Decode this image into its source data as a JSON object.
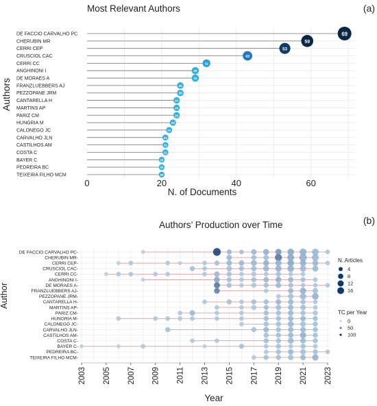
{
  "panel_labels": [
    "(a)",
    "(b)"
  ],
  "chart_data": [
    {
      "type": "lollipop",
      "title": "Most Relevant Authors",
      "xlabel": "N. of Documents",
      "ylabel": "Authors",
      "xlim": [
        0,
        72
      ],
      "xticks": [
        0,
        20,
        40,
        60
      ],
      "grid": true,
      "accent_colors": [
        "#0b2746",
        "#1f77c9",
        "#33aee3"
      ],
      "categories": [
        "DE FACCIO CARVALHO PC",
        "CHERUBIN MR",
        "CERRI CEP",
        "CRUSCIOL CAC",
        "CERRI CC",
        "ANGHINONI I",
        "DE MORAES A",
        "FRANZLUEBBERS AJ",
        "PEZZOPANE JRM",
        "CANTARELLA H",
        "MARTINS AP",
        "PARIZ CM",
        "HUNGRIA M",
        "CALONEGO JC",
        "CARVALHO JLN",
        "CASTILHOS AM",
        "COSTA C",
        "BAYER C",
        "PEDREIRA BC",
        "TEIXEIRA FILHO MCM"
      ],
      "values": [
        69,
        59,
        53,
        43,
        32,
        29,
        29,
        25,
        25,
        24,
        24,
        24,
        23,
        22,
        21,
        21,
        21,
        20,
        20,
        20
      ]
    },
    {
      "type": "scatter",
      "title": "Authors’ Production over Time",
      "xlabel": "Year",
      "ylabel": "Author",
      "xlim": [
        2003,
        2023
      ],
      "xticks": [
        2003,
        2005,
        2007,
        2009,
        2011,
        2013,
        2015,
        2017,
        2019,
        2021,
        2023
      ],
      "grid": true,
      "line_color": "#e8a6a6",
      "legend_position": "right",
      "legend": {
        "size_title": "N. Articles",
        "size_items": [
          4,
          8,
          12,
          16
        ],
        "color_title": "TC per Year",
        "color_items": [
          0,
          50,
          100
        ]
      },
      "authors": [
        "DE FACCIO CARVALHO PC",
        "CHERUBIN MR",
        "CERRI CEP",
        "CRUSCIOL CAC",
        "CERRI CC",
        "ANGHINONI I",
        "DE MORAES A",
        "FRANZLUEBBERS AJ",
        "PEZZOPANE JRM",
        "CANTARELLA H",
        "MARTINS AP",
        "PARIZ CM",
        "HUNGRIA M",
        "CALONEGO JC",
        "CARVALHO JLN",
        "CASTILHOS AM",
        "COSTA C",
        "BAYER C",
        "PEDREIRA BC",
        "TEIXEIRA FILHO MCM"
      ],
      "points": [
        [
          [
            2008,
            1,
            5
          ],
          [
            2014,
            12,
            95
          ],
          [
            2015,
            3,
            20
          ],
          [
            2016,
            2,
            15
          ],
          [
            2017,
            4,
            20
          ],
          [
            2018,
            5,
            25
          ],
          [
            2019,
            6,
            40
          ],
          [
            2020,
            7,
            30
          ],
          [
            2021,
            8,
            25
          ],
          [
            2022,
            7,
            20
          ],
          [
            2023,
            2,
            10
          ]
        ],
        [
          [
            2015,
            4,
            20
          ],
          [
            2017,
            3,
            15
          ],
          [
            2018,
            4,
            15
          ],
          [
            2019,
            9,
            60
          ],
          [
            2020,
            8,
            30
          ],
          [
            2021,
            10,
            25
          ],
          [
            2022,
            8,
            20
          ]
        ],
        [
          [
            2006,
            1,
            5
          ],
          [
            2007,
            2,
            10
          ],
          [
            2010,
            2,
            10
          ],
          [
            2011,
            1,
            5
          ],
          [
            2013,
            2,
            10
          ],
          [
            2014,
            3,
            15
          ],
          [
            2015,
            4,
            20
          ],
          [
            2016,
            4,
            20
          ],
          [
            2017,
            5,
            20
          ],
          [
            2018,
            5,
            25
          ],
          [
            2019,
            6,
            25
          ],
          [
            2020,
            7,
            30
          ],
          [
            2021,
            6,
            25
          ],
          [
            2022,
            5,
            20
          ],
          [
            2023,
            2,
            10
          ]
        ],
        [
          [
            2012,
            3,
            15
          ],
          [
            2013,
            2,
            10
          ],
          [
            2015,
            4,
            15
          ],
          [
            2016,
            3,
            15
          ],
          [
            2017,
            4,
            15
          ],
          [
            2018,
            5,
            20
          ],
          [
            2019,
            6,
            25
          ],
          [
            2020,
            7,
            25
          ],
          [
            2021,
            6,
            20
          ],
          [
            2022,
            5,
            20
          ]
        ],
        [
          [
            2005,
            1,
            5
          ],
          [
            2006,
            2,
            10
          ],
          [
            2007,
            2,
            10
          ],
          [
            2009,
            2,
            10
          ],
          [
            2010,
            2,
            10
          ],
          [
            2013,
            2,
            10
          ],
          [
            2014,
            4,
            20
          ],
          [
            2015,
            3,
            15
          ],
          [
            2016,
            2,
            10
          ],
          [
            2017,
            3,
            10
          ],
          [
            2018,
            2,
            10
          ],
          [
            2019,
            3,
            15
          ],
          [
            2020,
            2,
            10
          ],
          [
            2021,
            2,
            10
          ]
        ],
        [
          [
            2008,
            1,
            5
          ],
          [
            2014,
            5,
            30
          ],
          [
            2015,
            3,
            15
          ],
          [
            2016,
            2,
            10
          ],
          [
            2017,
            3,
            15
          ],
          [
            2018,
            4,
            20
          ],
          [
            2019,
            5,
            25
          ],
          [
            2020,
            4,
            20
          ],
          [
            2021,
            3,
            15
          ],
          [
            2022,
            2,
            10
          ]
        ],
        [
          [
            2014,
            6,
            60
          ],
          [
            2015,
            3,
            15
          ],
          [
            2016,
            2,
            10
          ],
          [
            2017,
            3,
            10
          ],
          [
            2018,
            3,
            15
          ],
          [
            2019,
            4,
            20
          ],
          [
            2020,
            3,
            15
          ],
          [
            2021,
            2,
            10
          ],
          [
            2022,
            2,
            10
          ],
          [
            2023,
            2,
            10
          ]
        ],
        [
          [
            2014,
            5,
            55
          ],
          [
            2018,
            2,
            10
          ],
          [
            2020,
            4,
            20
          ],
          [
            2021,
            6,
            25
          ],
          [
            2022,
            4,
            15
          ]
        ],
        [
          [
            2019,
            2,
            10
          ],
          [
            2020,
            4,
            15
          ],
          [
            2021,
            6,
            20
          ],
          [
            2022,
            7,
            25
          ]
        ],
        [
          [
            2013,
            2,
            10
          ],
          [
            2015,
            3,
            15
          ],
          [
            2016,
            2,
            10
          ],
          [
            2017,
            3,
            15
          ],
          [
            2018,
            3,
            15
          ],
          [
            2019,
            4,
            20
          ],
          [
            2020,
            4,
            20
          ],
          [
            2021,
            3,
            15
          ],
          [
            2022,
            2,
            10
          ]
        ],
        [
          [
            2014,
            2,
            10
          ],
          [
            2016,
            2,
            10
          ],
          [
            2017,
            3,
            10
          ],
          [
            2018,
            3,
            15
          ],
          [
            2019,
            4,
            15
          ],
          [
            2020,
            4,
            20
          ],
          [
            2021,
            4,
            15
          ],
          [
            2022,
            2,
            10
          ]
        ],
        [
          [
            2011,
            2,
            10
          ],
          [
            2012,
            4,
            20
          ],
          [
            2014,
            2,
            10
          ],
          [
            2016,
            2,
            10
          ],
          [
            2018,
            3,
            15
          ],
          [
            2019,
            3,
            15
          ],
          [
            2020,
            4,
            20
          ],
          [
            2021,
            3,
            15
          ],
          [
            2022,
            3,
            10
          ]
        ],
        [
          [
            2006,
            2,
            10
          ],
          [
            2009,
            2,
            10
          ],
          [
            2010,
            2,
            10
          ],
          [
            2011,
            2,
            10
          ],
          [
            2012,
            2,
            10
          ],
          [
            2014,
            2,
            10
          ],
          [
            2016,
            2,
            10
          ],
          [
            2018,
            3,
            15
          ],
          [
            2019,
            3,
            15
          ],
          [
            2020,
            4,
            20
          ],
          [
            2021,
            4,
            20
          ],
          [
            2022,
            3,
            15
          ]
        ],
        [
          [
            2016,
            2,
            10
          ],
          [
            2018,
            3,
            15
          ],
          [
            2019,
            3,
            15
          ],
          [
            2020,
            5,
            20
          ],
          [
            2021,
            4,
            15
          ],
          [
            2022,
            3,
            15
          ]
        ],
        [
          [
            2010,
            3,
            15
          ],
          [
            2017,
            3,
            15
          ],
          [
            2018,
            4,
            20
          ],
          [
            2019,
            3,
            15
          ],
          [
            2020,
            4,
            20
          ],
          [
            2021,
            4,
            20
          ],
          [
            2022,
            3,
            15
          ]
        ],
        [
          [
            2018,
            3,
            15
          ],
          [
            2019,
            3,
            15
          ],
          [
            2020,
            4,
            20
          ],
          [
            2021,
            6,
            25
          ],
          [
            2022,
            3,
            15
          ]
        ],
        [
          [
            2012,
            2,
            10
          ],
          [
            2014,
            2,
            10
          ],
          [
            2018,
            3,
            15
          ],
          [
            2019,
            3,
            15
          ],
          [
            2020,
            5,
            20
          ],
          [
            2021,
            4,
            20
          ],
          [
            2022,
            3,
            15
          ]
        ],
        [
          [
            2003,
            1,
            5
          ],
          [
            2006,
            1,
            5
          ],
          [
            2008,
            2,
            10
          ],
          [
            2013,
            1,
            5
          ],
          [
            2016,
            3,
            15
          ],
          [
            2018,
            2,
            10
          ],
          [
            2019,
            3,
            15
          ],
          [
            2020,
            2,
            10
          ],
          [
            2021,
            3,
            15
          ],
          [
            2022,
            2,
            10
          ]
        ],
        [
          [
            2018,
            2,
            10
          ],
          [
            2019,
            3,
            15
          ],
          [
            2020,
            4,
            20
          ],
          [
            2021,
            4,
            15
          ],
          [
            2022,
            3,
            15
          ],
          [
            2023,
            2,
            10
          ]
        ],
        [
          [
            2017,
            2,
            10
          ],
          [
            2018,
            3,
            15
          ],
          [
            2019,
            3,
            15
          ],
          [
            2020,
            4,
            15
          ],
          [
            2021,
            4,
            20
          ],
          [
            2022,
            6,
            25
          ]
        ]
      ]
    }
  ]
}
